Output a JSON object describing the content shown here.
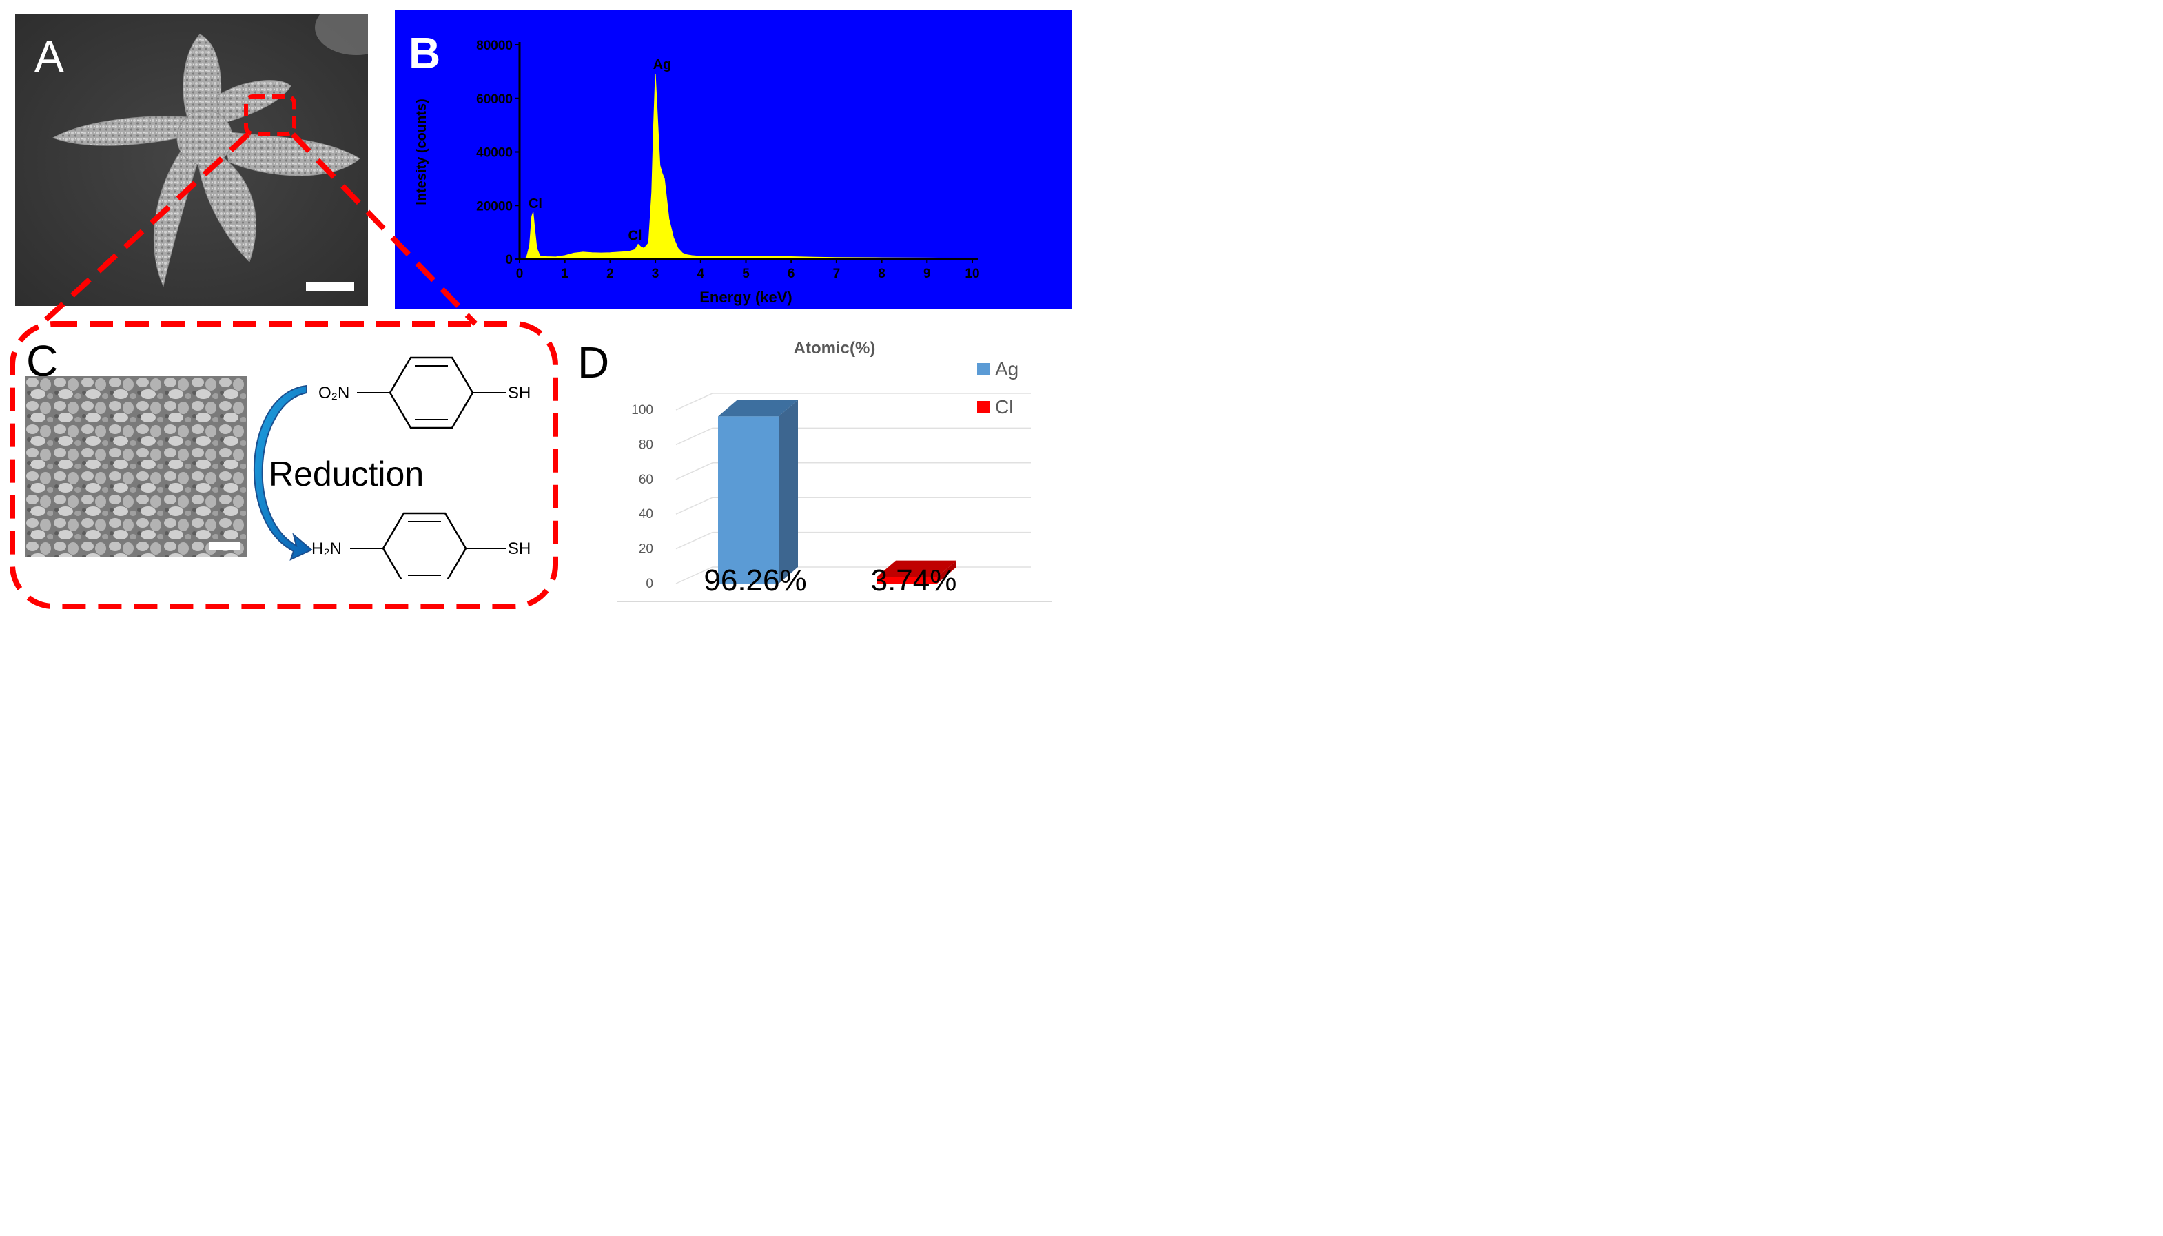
{
  "panels": {
    "a": {
      "label": "A"
    },
    "b": {
      "label": "B"
    },
    "c": {
      "label": "C"
    },
    "d": {
      "label": "D"
    }
  },
  "scheme": {
    "reactant_left_group": "O₂N",
    "product_left_group": "H₂N",
    "right_group": "SH",
    "arrow_label": "Reduction"
  },
  "colors": {
    "eds_background": "#0000ff",
    "eds_fill": "#ffff00",
    "zoom_outline": "#ff0000",
    "ag_bar": "#5b9bd5",
    "cl_bar": "#ff0000"
  },
  "chart_data": [
    {
      "type": "area",
      "panel": "B",
      "title": "",
      "xlabel": "Energy (keV)",
      "ylabel": "Intesity (counts)",
      "xlim": [
        0,
        10
      ],
      "ylim": [
        0,
        80000
      ],
      "xticks": [
        "0",
        "1",
        "2",
        "3",
        "4",
        "5",
        "6",
        "7",
        "8",
        "9",
        "10"
      ],
      "yticks": [
        "0",
        "20000",
        "40000",
        "60000",
        "80000"
      ],
      "grid": false,
      "series": [
        {
          "name": "EDS spectrum",
          "x": [
            0,
            0.15,
            0.22,
            0.27,
            0.3,
            0.33,
            0.38,
            0.45,
            0.6,
            0.8,
            1.0,
            1.2,
            1.4,
            1.6,
            1.8,
            2.0,
            2.2,
            2.4,
            2.55,
            2.62,
            2.68,
            2.75,
            2.85,
            2.92,
            2.96,
            3.0,
            3.05,
            3.1,
            3.15,
            3.2,
            3.3,
            3.4,
            3.5,
            3.6,
            3.7,
            3.8,
            3.95,
            4.2,
            5.0,
            6.0,
            6.5,
            7.0,
            8.0,
            9.0,
            10.0
          ],
          "y": [
            0,
            500,
            5000,
            16000,
            17500,
            12000,
            4000,
            1200,
            900,
            800,
            1300,
            2200,
            2600,
            2400,
            2300,
            2400,
            2600,
            2800,
            3500,
            5500,
            4500,
            4000,
            6000,
            25000,
            50000,
            69000,
            52000,
            35000,
            32000,
            30000,
            15000,
            8000,
            4000,
            2200,
            1600,
            1300,
            1100,
            1000,
            900,
            900,
            700,
            600,
            500,
            400,
            300
          ]
        }
      ],
      "annotations": [
        {
          "text": "Cl",
          "x": 0.35,
          "y": 18000
        },
        {
          "text": "Cl",
          "x": 2.55,
          "y": 6000
        },
        {
          "text": "Ag",
          "x": 3.15,
          "y": 70000
        }
      ]
    },
    {
      "type": "bar",
      "panel": "D",
      "title": "Atomic(%)",
      "xlabel": "",
      "ylabel": "",
      "ylim": [
        0,
        100
      ],
      "yticks": [
        "0",
        "20",
        "40",
        "60",
        "80",
        "100"
      ],
      "grid": true,
      "legend": "top-right",
      "categories": [
        "Ag",
        "Cl"
      ],
      "values": [
        96.26,
        3.74
      ],
      "value_labels": [
        "96.26%",
        "3.74%"
      ]
    }
  ]
}
